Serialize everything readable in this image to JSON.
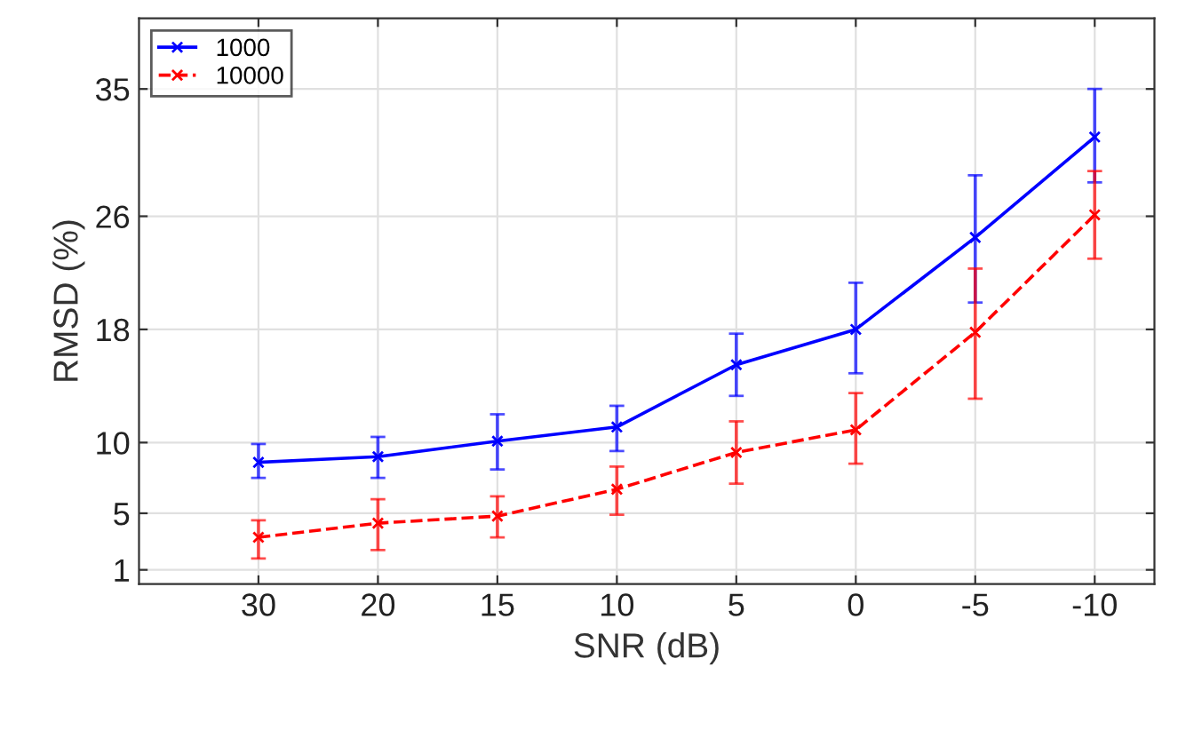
{
  "chart_data": {
    "type": "line",
    "xlabel": "SNR (dB)",
    "ylabel": "RMSD (%)",
    "categories": [
      "30",
      "20",
      "15",
      "10",
      "5",
      "0",
      "-5",
      "-10"
    ],
    "series": [
      {
        "name": "1000",
        "color": "#0000ff",
        "line_style": "solid",
        "values": [
          8.6,
          9.0,
          10.1,
          11.1,
          15.5,
          18.0,
          24.5,
          31.6
        ],
        "errors": [
          [
            7.5,
            9.9
          ],
          [
            7.5,
            10.4
          ],
          [
            8.1,
            12.0
          ],
          [
            9.4,
            12.6
          ],
          [
            13.3,
            17.7
          ],
          [
            14.9,
            21.3
          ],
          [
            19.9,
            28.9
          ],
          [
            28.4,
            35.0
          ]
        ]
      },
      {
        "name": "10000",
        "color": "#ff0000",
        "line_style": "dashed",
        "values": [
          3.3,
          4.3,
          4.8,
          6.7,
          9.3,
          10.9,
          17.8,
          26.1
        ],
        "errors": [
          [
            1.8,
            4.5
          ],
          [
            2.4,
            6.0
          ],
          [
            3.3,
            6.2
          ],
          [
            4.9,
            8.3
          ],
          [
            7.1,
            11.5
          ],
          [
            8.5,
            13.5
          ],
          [
            13.1,
            22.3
          ],
          [
            23.0,
            29.2
          ]
        ]
      }
    ],
    "ylim": [
      0,
      40
    ],
    "yticks": [
      1,
      5,
      10,
      18,
      26,
      35
    ],
    "grid": true,
    "legend": "top left",
    "marker": "cross"
  }
}
